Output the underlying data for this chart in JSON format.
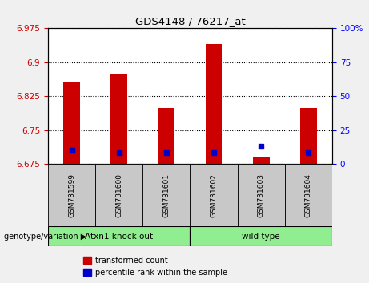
{
  "title": "GDS4148 / 76217_at",
  "samples": [
    "GSM731599",
    "GSM731600",
    "GSM731601",
    "GSM731602",
    "GSM731603",
    "GSM731604"
  ],
  "red_bar_values": [
    6.855,
    6.875,
    6.8,
    6.94,
    6.69,
    6.8
  ],
  "blue_marker_values": [
    6.705,
    6.7,
    6.7,
    6.7,
    6.715,
    6.7
  ],
  "y_min": 6.675,
  "y_max": 6.975,
  "y_ticks_left": [
    6.675,
    6.75,
    6.825,
    6.9,
    6.975
  ],
  "y_ticks_right": [
    0,
    25,
    50,
    75,
    100
  ],
  "bar_color": "#CC0000",
  "blue_color": "#0000CC",
  "bar_width": 0.35,
  "background_color": "#f0f0f0",
  "plot_bg": "#ffffff",
  "left_tick_color": "#CC0000",
  "right_tick_color": "#0000FF",
  "group_labels": [
    "Atxn1 knock out",
    "wild type"
  ],
  "group_ranges": [
    [
      0,
      3
    ],
    [
      3,
      6
    ]
  ],
  "group_color": "#90EE90",
  "sample_box_color": "#c8c8c8",
  "legend_items": [
    "transformed count",
    "percentile rank within the sample"
  ],
  "genotype_label": "genotype/variation"
}
